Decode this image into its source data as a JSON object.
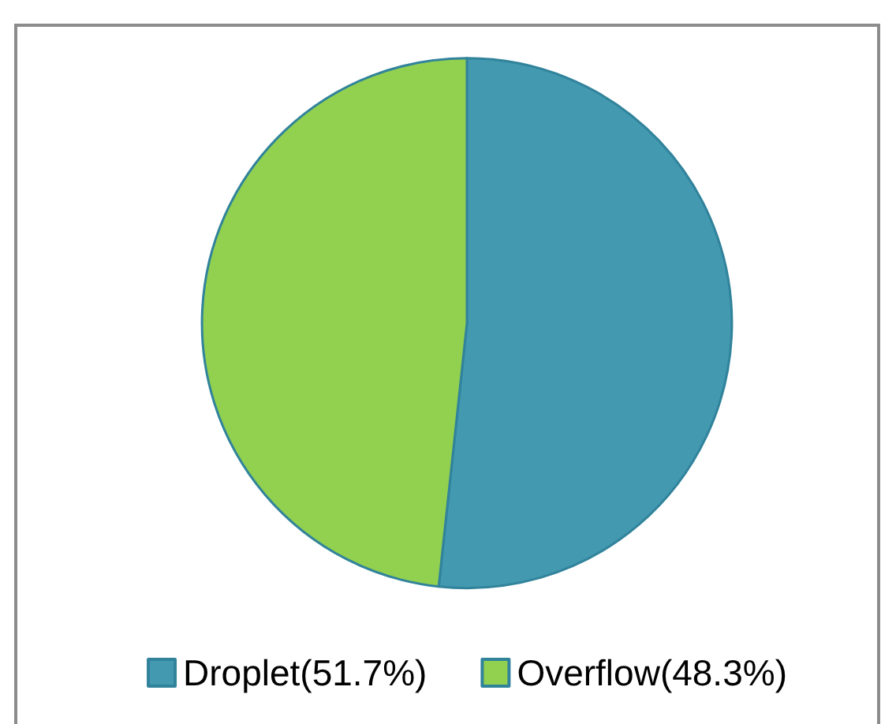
{
  "chart_data": {
    "type": "pie",
    "categories": [
      "Droplet(51.7%)",
      "Overflow(48.3%)"
    ],
    "values": [
      51.7,
      48.3
    ],
    "colors": [
      "#4299b0",
      "#92d050"
    ],
    "legend": "bottom"
  }
}
